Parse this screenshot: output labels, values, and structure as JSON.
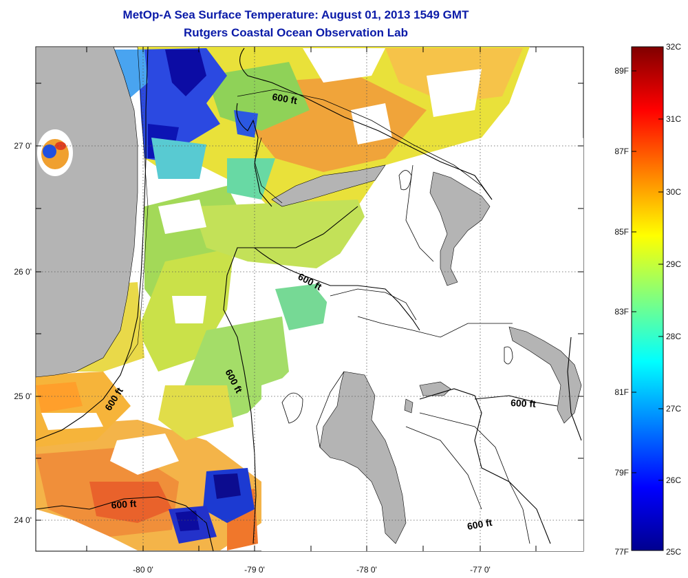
{
  "title": {
    "line1": "MetOp-A Sea Surface Temperature:  August 01, 2013 1549 GMT",
    "line2": "Rutgers Coastal Ocean Observation Lab"
  },
  "map": {
    "lon_labels": [
      "-80 0'",
      "-79 0'",
      "-78 0'",
      "-77 0'"
    ],
    "lat_labels": [
      "27 0'",
      "26 0'",
      "25 0'",
      "24 0'"
    ],
    "depth_contour_label": "600 ft",
    "land_color": "#b4b4b4",
    "ocean_no_data_color": "#ffffff"
  },
  "colorbar": {
    "celsius_labels": [
      "32C",
      "31C",
      "30C",
      "29C",
      "28C",
      "27C",
      "26C",
      "25C"
    ],
    "fahrenheit_labels": [
      "89F",
      "87F",
      "85F",
      "83F",
      "81F",
      "79F",
      "77F"
    ],
    "colors": [
      "#00008f",
      "#0000ff",
      "#00ffff",
      "#ffff00",
      "#ff8000",
      "#ff0000",
      "#800000"
    ]
  }
}
